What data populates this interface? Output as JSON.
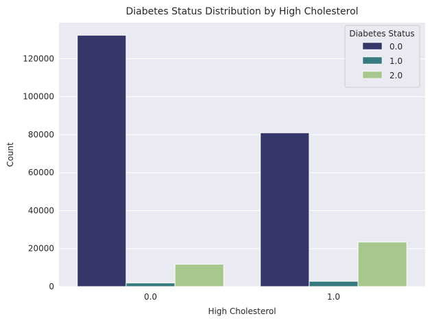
{
  "chart_data": {
    "type": "bar",
    "title": "Diabetes Status Distribution by High Cholesterol",
    "xlabel": "High Cholesterol",
    "ylabel": "Count",
    "categories": [
      "0.0",
      "1.0"
    ],
    "series": [
      {
        "name": "0.0",
        "values": [
          132400,
          81000
        ],
        "color": "#35376a"
      },
      {
        "name": "1.0",
        "values": [
          1900,
          2800
        ],
        "color": "#347a7f"
      },
      {
        "name": "2.0",
        "values": [
          11800,
          23500
        ],
        "color": "#a8c78f"
      }
    ],
    "ylim": [
      0,
      139000
    ],
    "yticks": [
      0,
      20000,
      40000,
      60000,
      80000,
      100000,
      120000
    ],
    "ytick_labels": [
      "0",
      "20000",
      "40000",
      "60000",
      "80000",
      "100000",
      "120000"
    ],
    "grid": true,
    "legend": {
      "title": "Diabetes Status",
      "position": "top-right"
    },
    "colors": {
      "background": "#eaeaf2",
      "grid": "#ffffff"
    }
  }
}
